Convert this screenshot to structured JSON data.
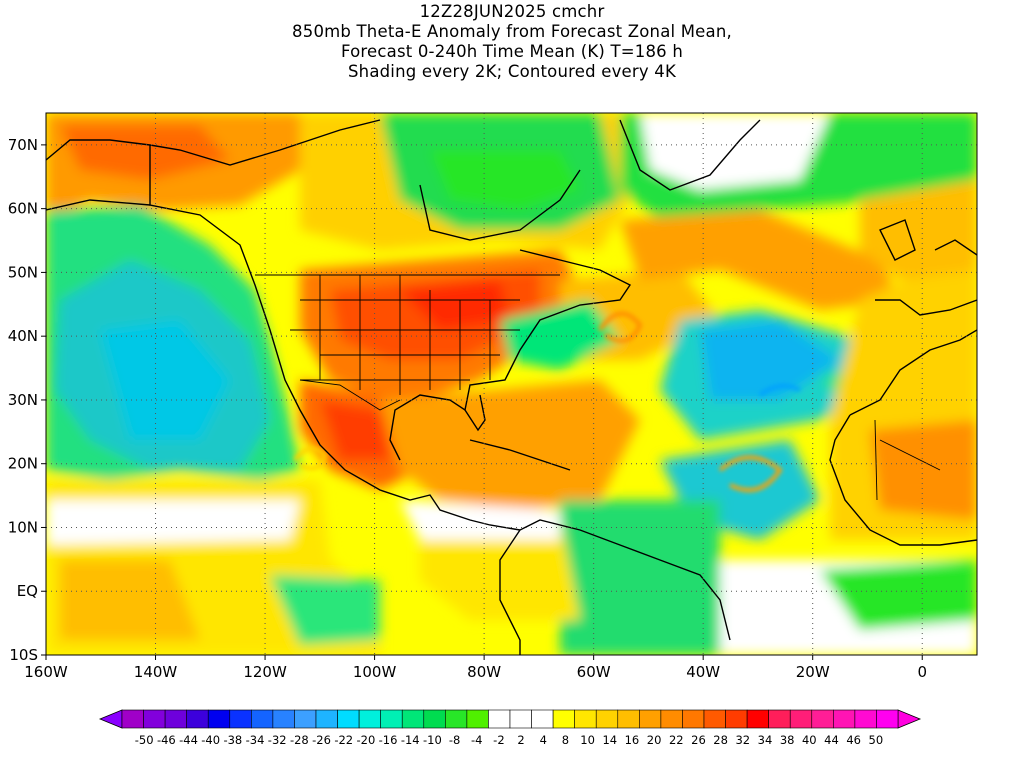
{
  "title": {
    "lines": [
      "12Z28JUN2025 cmchr",
      "850mb Theta-E Anomaly from Forecast Zonal Mean,",
      "Forecast 0-240h Time Mean (K) T=186 h",
      "Shading every 2K; Contoured every 4K"
    ]
  },
  "axes": {
    "lat_labels": [
      "70N",
      "60N",
      "50N",
      "40N",
      "30N",
      "20N",
      "10N",
      "EQ",
      "10S"
    ],
    "lon_labels": [
      "160W",
      "140W",
      "120W",
      "100W",
      "80W",
      "60W",
      "40W",
      "20W",
      "0"
    ],
    "lat_values": [
      70,
      60,
      50,
      40,
      30,
      20,
      10,
      0,
      -10
    ],
    "lon_values": [
      -160,
      -140,
      -120,
      -100,
      -80,
      -60,
      -40,
      -20,
      0
    ],
    "lat_range": [
      -10,
      75
    ],
    "lon_range": [
      -160,
      10
    ]
  },
  "colorbar": {
    "labels": [
      "-50",
      "-46",
      "-44",
      "-40",
      "-38",
      "-34",
      "-32",
      "-28",
      "-26",
      "-22",
      "-20",
      "-16",
      "-14",
      "-10",
      "-8",
      "-4",
      "-2",
      "2",
      "4",
      "8",
      "10",
      "14",
      "16",
      "20",
      "22",
      "26",
      "28",
      "32",
      "34",
      "38",
      "40",
      "44",
      "46",
      "50"
    ],
    "colors": [
      "#a000c8",
      "#8200dc",
      "#6e00dc",
      "#3c00dc",
      "#0000f0",
      "#0a32ff",
      "#1464ff",
      "#2882ff",
      "#3ca0ff",
      "#1eb4ff",
      "#00dcff",
      "#00f0dc",
      "#00f0b4",
      "#00e678",
      "#00dc50",
      "#28e628",
      "#50f000",
      "#ffffff",
      "#ffffff",
      "#ffffff",
      "#ffff00",
      "#ffe600",
      "#ffd200",
      "#ffbe00",
      "#ffa000",
      "#ff8c00",
      "#ff7800",
      "#ff5a00",
      "#ff3c00",
      "#ff0000",
      "#ff1e5a",
      "#ff1e78",
      "#ff1e96",
      "#ff14b4",
      "#ff0ad2",
      "#ff00f0"
    ],
    "left_arrow_color": "#8a00ff",
    "right_arrow_color": "#ff00e0"
  },
  "map": {
    "projection": "cylindrical equidistant",
    "field": "850mb theta-e anomaly",
    "land_outline_color": "#000000",
    "grid_style": "dotted"
  }
}
